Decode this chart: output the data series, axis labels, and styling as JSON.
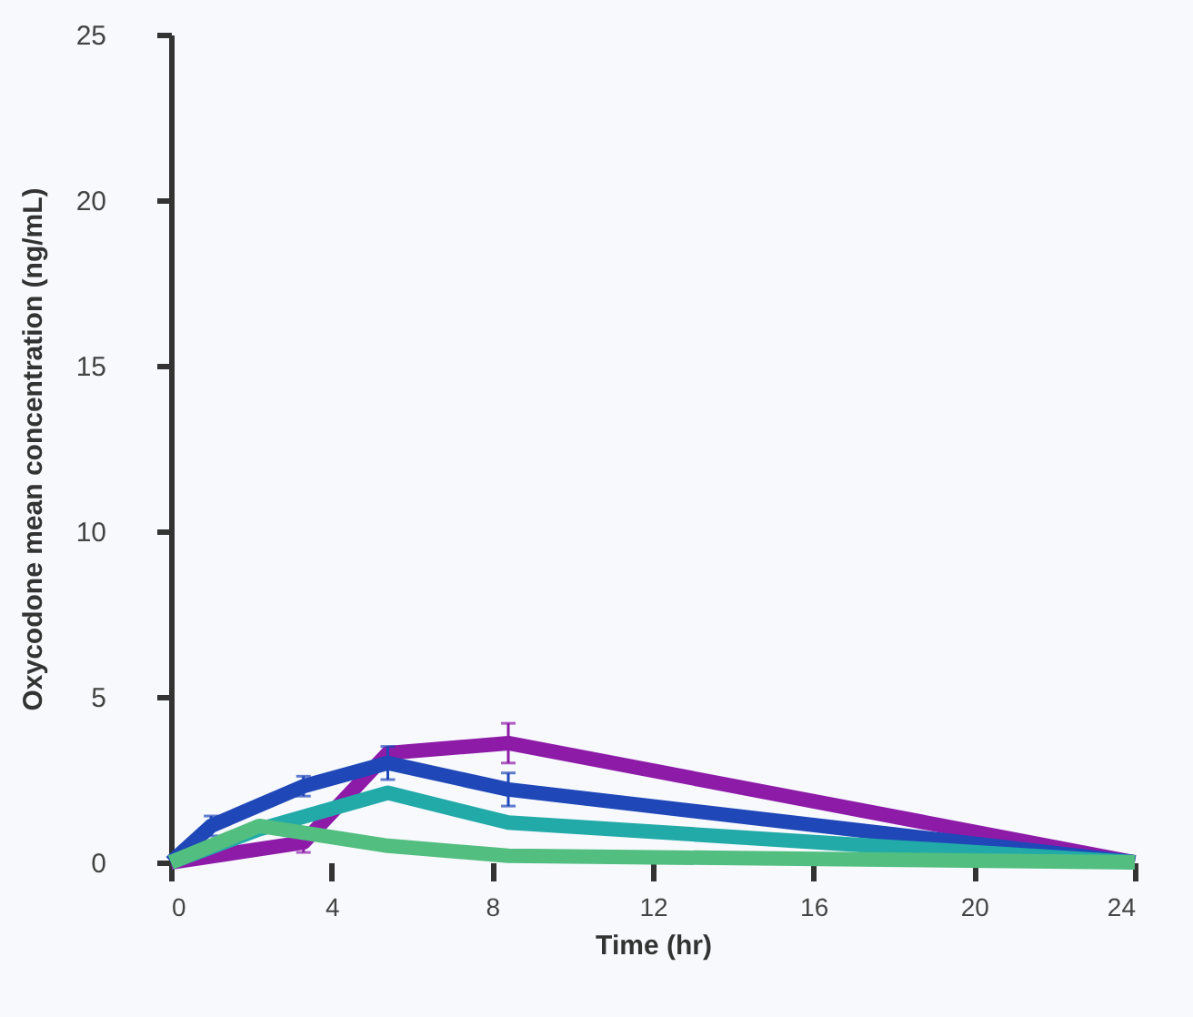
{
  "chart_data": {
    "type": "line",
    "xlabel": "Time (hr)",
    "ylabel": "Oxycodone mean concentration (ng/mL)",
    "xlim": [
      0,
      24
    ],
    "xticks": [
      0,
      4,
      8,
      12,
      16,
      20,
      24
    ],
    "ylim": [
      0,
      25
    ],
    "yticks": [
      0,
      5,
      10,
      15,
      20,
      25
    ],
    "grid": false,
    "marker": "none",
    "line_style": "solid",
    "series": [
      {
        "color": "#8e1aa8",
        "x": [
          0,
          3.3,
          5.4,
          8.4,
          24
        ],
        "values": [
          0,
          0.6,
          3.3,
          3.6,
          0
        ],
        "errors": [
          null,
          0.3,
          null,
          0.6,
          null
        ]
      },
      {
        "color": "#1f47b8",
        "x": [
          0,
          1,
          3.3,
          5.4,
          8.4,
          24
        ],
        "values": [
          0,
          1.1,
          2.3,
          3,
          2.2,
          0
        ],
        "errors": [
          null,
          0.3,
          0.3,
          0.5,
          0.5,
          null
        ]
      },
      {
        "color": "#22aaa8",
        "x": [
          0,
          2.2,
          5.4,
          8.4,
          24
        ],
        "values": [
          0,
          1,
          2.1,
          1.2,
          0
        ],
        "errors": [
          null,
          null,
          null,
          null,
          null
        ]
      },
      {
        "color": "#52be80",
        "x": [
          0,
          2.2,
          5.4,
          8.4,
          24
        ],
        "values": [
          0,
          1.1,
          0.5,
          0.2,
          0
        ],
        "errors": [
          null,
          null,
          null,
          null,
          null
        ]
      }
    ]
  }
}
